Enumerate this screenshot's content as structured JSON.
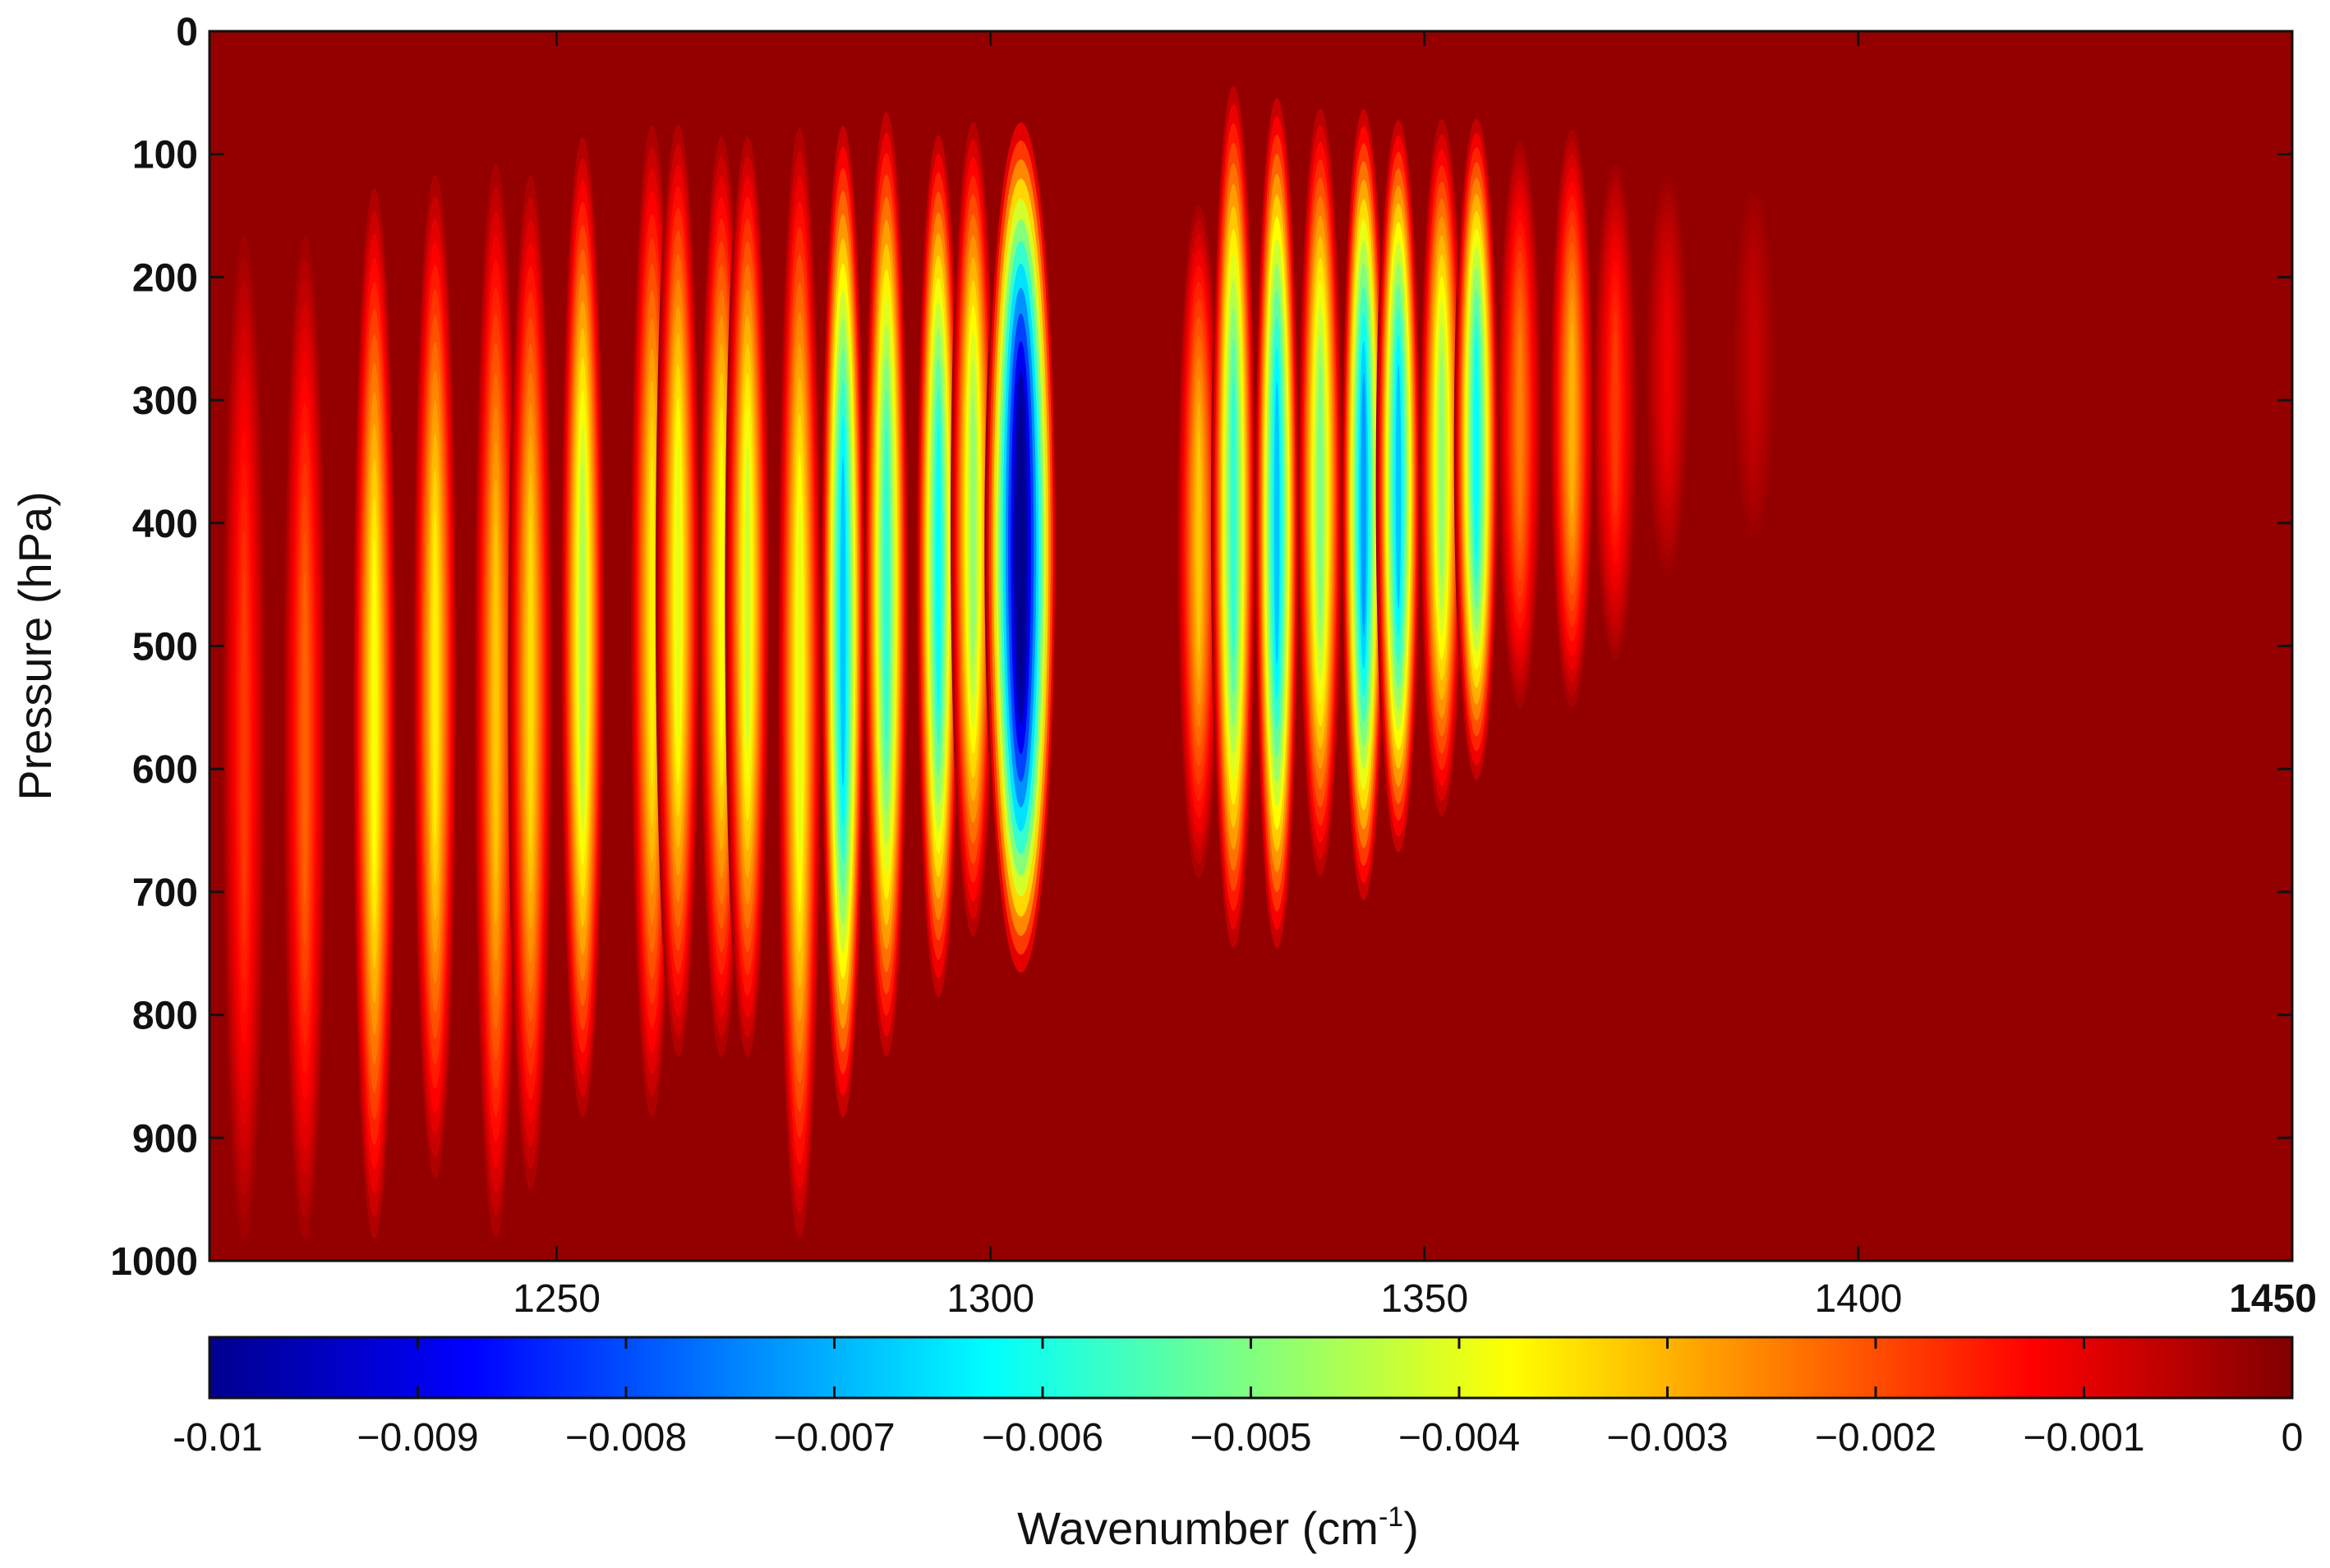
{
  "chart_data": {
    "type": "heatmap",
    "title": "",
    "xlabel": "",
    "ylabel": "Pressure (hPa)",
    "xlim": [
      1210,
      1450
    ],
    "ylim": [
      0,
      1000
    ],
    "y_inverted": true,
    "x_ticks": [
      "1250",
      "1300",
      "1350",
      "1400",
      "1450"
    ],
    "x_tick_values": [
      1250,
      1300,
      1350,
      1400,
      1450
    ],
    "y_ticks": [
      "0",
      "100",
      "200",
      "300",
      "400",
      "500",
      "600",
      "700",
      "800",
      "900",
      "1000"
    ],
    "y_tick_values": [
      0,
      100,
      200,
      300,
      400,
      500,
      600,
      700,
      800,
      900,
      1000
    ],
    "grid": false,
    "colorbar": {
      "label_main": "Wavenumber (cm",
      "label_sup": "-1",
      "label_end": ")",
      "range": [
        -0.01,
        0
      ],
      "ticks": [
        "-0.01",
        "−0.009",
        "−0.008",
        "−0.007",
        "−0.006",
        "−0.005",
        "−0.004",
        "−0.003",
        "−0.002",
        "−0.001",
        "0"
      ],
      "tick_values": [
        -0.01,
        -0.009,
        -0.008,
        -0.007,
        -0.006,
        -0.005,
        -0.004,
        -0.003,
        -0.002,
        -0.001,
        0
      ],
      "colormap": "jet",
      "colors": [
        "#00008f",
        "#0000ff",
        "#0080ff",
        "#00ffff",
        "#80ff80",
        "#ffff00",
        "#ff8000",
        "#ff0000",
        "#800000"
      ]
    },
    "background_value": -0.0002,
    "features": [
      {
        "x": 1214,
        "p_top": 150,
        "p_bot": 1000,
        "min": -0.0018
      },
      {
        "x": 1221,
        "p_top": 150,
        "p_bot": 1000,
        "min": -0.0022
      },
      {
        "x": 1229,
        "p_top": 110,
        "p_bot": 1000,
        "min": -0.0038
      },
      {
        "x": 1236,
        "p_top": 100,
        "p_bot": 950,
        "min": -0.0036
      },
      {
        "x": 1243,
        "p_top": 90,
        "p_bot": 1000,
        "min": -0.0032
      },
      {
        "x": 1247,
        "p_top": 100,
        "p_bot": 960,
        "min": -0.0034
      },
      {
        "x": 1253,
        "p_top": 70,
        "p_bot": 900,
        "min": -0.0045
      },
      {
        "x": 1261,
        "p_top": 60,
        "p_bot": 900,
        "min": -0.0036
      },
      {
        "x": 1264,
        "p_top": 60,
        "p_bot": 850,
        "min": -0.004
      },
      {
        "x": 1269,
        "p_top": 70,
        "p_bot": 850,
        "min": -0.0038
      },
      {
        "x": 1272,
        "p_top": 70,
        "p_bot": 850,
        "min": -0.0042
      },
      {
        "x": 1278,
        "p_top": 60,
        "p_bot": 1000,
        "min": -0.004
      },
      {
        "x": 1283,
        "p_top": 60,
        "p_bot": 900,
        "min": -0.0068
      },
      {
        "x": 1288,
        "p_top": 50,
        "p_bot": 850,
        "min": -0.0058
      },
      {
        "x": 1294,
        "p_top": 70,
        "p_bot": 800,
        "min": -0.0062
      },
      {
        "x": 1298,
        "p_top": 60,
        "p_bot": 750,
        "min": -0.0048
      },
      {
        "x": 1303.5,
        "p_top": 60,
        "p_bot": 780,
        "min": -0.0105
      },
      {
        "x": 1324,
        "p_top": 130,
        "p_bot": 700,
        "min": -0.0032
      },
      {
        "x": 1328,
        "p_top": 30,
        "p_bot": 760,
        "min": -0.0058
      },
      {
        "x": 1333,
        "p_top": 40,
        "p_bot": 760,
        "min": -0.0068
      },
      {
        "x": 1338,
        "p_top": 50,
        "p_bot": 700,
        "min": -0.005
      },
      {
        "x": 1343,
        "p_top": 50,
        "p_bot": 720,
        "min": -0.0072
      },
      {
        "x": 1347,
        "p_top": 60,
        "p_bot": 680,
        "min": -0.0068
      },
      {
        "x": 1352,
        "p_top": 60,
        "p_bot": 650,
        "min": -0.0048
      },
      {
        "x": 1356,
        "p_top": 60,
        "p_bot": 620,
        "min": -0.0062
      },
      {
        "x": 1361,
        "p_top": 80,
        "p_bot": 560,
        "min": -0.0025
      },
      {
        "x": 1367,
        "p_top": 70,
        "p_bot": 560,
        "min": -0.003
      },
      {
        "x": 1372,
        "p_top": 100,
        "p_bot": 520,
        "min": -0.0018
      },
      {
        "x": 1378,
        "p_top": 110,
        "p_bot": 450,
        "min": -0.0011
      },
      {
        "x": 1388,
        "p_top": 120,
        "p_bot": 420,
        "min": -0.0007
      }
    ]
  }
}
